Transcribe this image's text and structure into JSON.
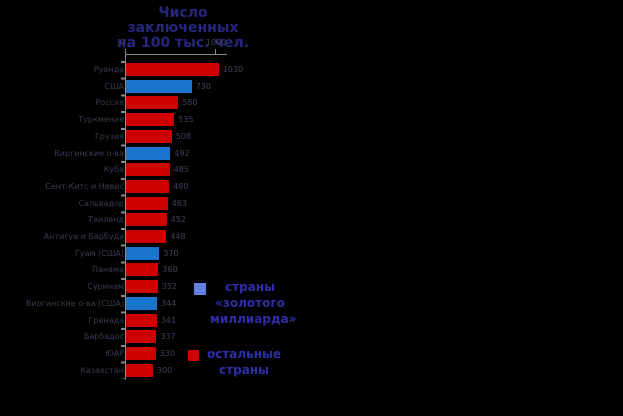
{
  "background": "#000000",
  "title": {
    "lines": [
      "Число заключенных",
      "на 100 тыс. чел."
    ],
    "color": "#26267e"
  },
  "axis": {
    "color": "#8a8a8a",
    "tick_labels": [
      "0",
      "1000"
    ],
    "text_color": "#42425a"
  },
  "chart_data": {
    "type": "bar",
    "orientation": "horizontal",
    "title": "Число заключенных на 100 тыс. чел.",
    "xlabel": "",
    "ylabel": "",
    "xlim": [
      0,
      1000
    ],
    "xticks": [
      0,
      1000
    ],
    "grid": false,
    "legend_position": "bottom-right",
    "categories": [
      "Руанда",
      "США",
      "Россия",
      "Туркмения",
      "Грузия",
      "Виргинские о-ва",
      "Куба",
      "Сент-Китс и Невис",
      "Сальвадор",
      "Таиланд",
      "Антигуа и Барбуда",
      "Гуам (США)",
      "Панама",
      "Суринам",
      "Виргинские о-ва (США)",
      "Гренада",
      "Барбадос",
      "ЮАР",
      "Казахстан"
    ],
    "values": [
      1030,
      730,
      580,
      535,
      508,
      492,
      485,
      480,
      463,
      452,
      448,
      370,
      360,
      352,
      344,
      341,
      337,
      330,
      300
    ],
    "groups": [
      "other",
      "golden_billion",
      "other",
      "other",
      "other",
      "golden_billion",
      "other",
      "other",
      "other",
      "other",
      "other",
      "golden_billion",
      "other",
      "other",
      "golden_billion",
      "other",
      "other",
      "other",
      "other"
    ],
    "group_colors": {
      "golden_billion": "#1874cd",
      "other": "#cc0000"
    },
    "category_label_color": "#3c3c50",
    "value_label_color": "#42425a",
    "legend": [
      {
        "key": "golden_billion",
        "lines": [
          "страны",
          "«золотого",
          "миллиарда»"
        ],
        "swatch_color": "#6680e0"
      },
      {
        "key": "other",
        "lines": [
          "остальные",
          "страны"
        ],
        "swatch_color": "#cc0000"
      }
    ],
    "legend_text_color": "#2e2ea8"
  }
}
